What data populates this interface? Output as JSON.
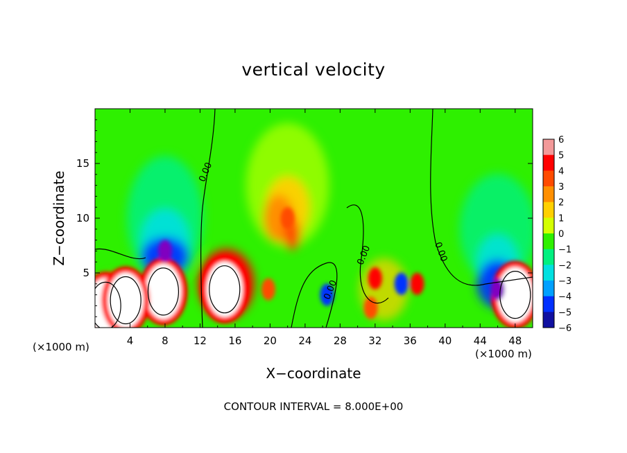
{
  "chart_data": {
    "type": "heatmap",
    "title": "vertical velocity",
    "xlabel": "X−coordinate",
    "ylabel": "Z−coordinate",
    "x_units": "(×1000 m)",
    "xlim": [
      0,
      50
    ],
    "ylim": [
      0,
      20
    ],
    "x_ticks": [
      "4",
      "8",
      "12",
      "16",
      "20",
      "24",
      "28",
      "32",
      "36",
      "40",
      "44",
      "48"
    ],
    "y_ticks": [
      "5",
      "10",
      "15"
    ],
    "colorbar": {
      "min": -6,
      "max": 6,
      "labels": [
        "6",
        "5",
        "4",
        "3",
        "2",
        "1",
        "0",
        "−1",
        "−2",
        "−3",
        "−4",
        "−5",
        "−6"
      ],
      "colors": [
        "#f39999",
        "#ff0000",
        "#ff4b00",
        "#ff8f00",
        "#ffd000",
        "#d4ff00",
        "#2ef000",
        "#00f080",
        "#00e0e0",
        "#00a0ff",
        "#0030ff",
        "#1010a0",
        "#8000c0"
      ]
    },
    "contour_labels": [
      "0.00",
      "0.00",
      "0.00",
      "0.00"
    ],
    "contour_interval_text": "CONTOUR INTERVAL =  8.000E+00",
    "features": [
      {
        "x": 22,
        "z": 10,
        "w": 4
      },
      {
        "x": 14.8,
        "z": 3.5,
        "w": 20
      },
      {
        "x": 7.8,
        "z": 3.3,
        "w": 20
      },
      {
        "x": 8,
        "z": 7,
        "w": -6
      },
      {
        "x": 48,
        "z": 3,
        "w": 14
      },
      {
        "x": 46,
        "z": 3.5,
        "w": -6
      },
      {
        "x": 32,
        "z": 4.5,
        "w": 5
      },
      {
        "x": 31.5,
        "z": 1.8,
        "w": 4
      },
      {
        "x": 36.8,
        "z": 4,
        "w": 5
      },
      {
        "x": 35,
        "z": 4,
        "w": -4
      },
      {
        "x": 26.5,
        "z": 3,
        "w": -4
      },
      {
        "x": 1.2,
        "z": 2,
        "w": 8
      },
      {
        "x": 3.5,
        "z": 2.5,
        "w": 7
      },
      {
        "x": 19.8,
        "z": 3.5,
        "w": 4
      }
    ]
  }
}
